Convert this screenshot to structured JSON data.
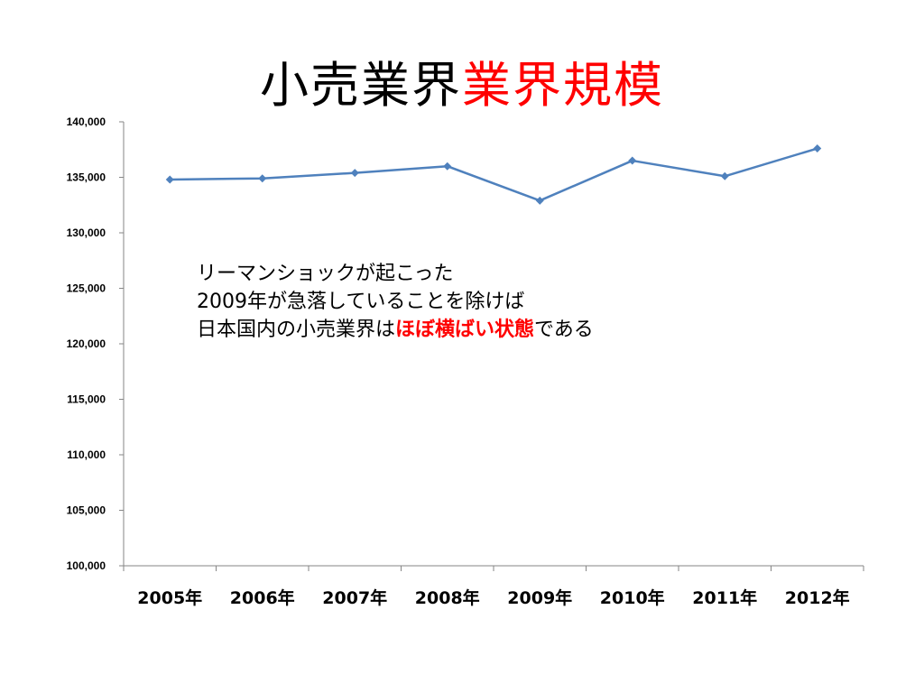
{
  "title": {
    "part1": "小売業界",
    "part2": "業界規模",
    "part2_color": "#ff0000"
  },
  "annotation": {
    "line1": "リーマンショックが起こった",
    "line2": "2009年が急落していることを除けば",
    "line3_before": "日本国内の小売業界は",
    "line3_emphasis": "ほぼ横ばい状態",
    "line3_after": "である",
    "emphasis_color": "#ff0000"
  },
  "chart_data": {
    "type": "line",
    "categories": [
      "2005年",
      "2006年",
      "2007年",
      "2008年",
      "2009年",
      "2010年",
      "2011年",
      "2012年"
    ],
    "series": [
      {
        "values": [
          134800,
          134900,
          135400,
          136000,
          132900,
          136500,
          135100,
          137600
        ],
        "color": "#4f81bd"
      }
    ],
    "ylim": [
      100000,
      140000
    ],
    "yticks": [
      "100,000",
      "105,000",
      "110,000",
      "115,000",
      "120,000",
      "125,000",
      "130,000",
      "135,000",
      "140,000"
    ],
    "grid": false,
    "legend": "none",
    "marker": "diamond"
  }
}
